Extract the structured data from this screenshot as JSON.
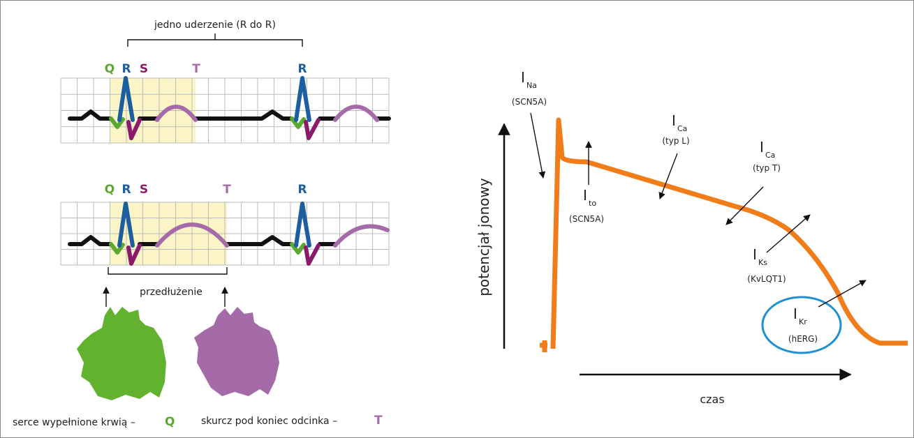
{
  "ecg": {
    "beat_label": "jedno uderzenie (R do R)",
    "strips": [
      {
        "labels": [
          "Q",
          "R",
          "S",
          "T",
          "R"
        ]
      },
      {
        "labels": [
          "Q",
          "R",
          "S",
          "T",
          "R"
        ]
      }
    ],
    "prolongation_label": "przedłużenie"
  },
  "hearts": [
    {
      "caption": "serce wypełnione krwią –",
      "letter": "Q"
    },
    {
      "caption": "skurcz pod koniec odcinka –",
      "letter": "T"
    }
  ],
  "action_potential": {
    "y_label": "potencjał jonowy",
    "x_label": "czas",
    "currents": [
      {
        "symbol": "I",
        "sub": "Na",
        "gene": "(SCN5A)"
      },
      {
        "symbol": "I",
        "sub": "to",
        "gene": "(SCN5A)"
      },
      {
        "symbol": "I",
        "sub": "Ca",
        "gene": "(typ L)"
      },
      {
        "symbol": "I",
        "sub": "Ca",
        "gene": "(typ T)"
      },
      {
        "symbol": "I",
        "sub": "Ks",
        "gene": "(KvLQT1)"
      },
      {
        "symbol": "I",
        "sub": "Kr",
        "gene": "(hERG)"
      }
    ]
  }
}
